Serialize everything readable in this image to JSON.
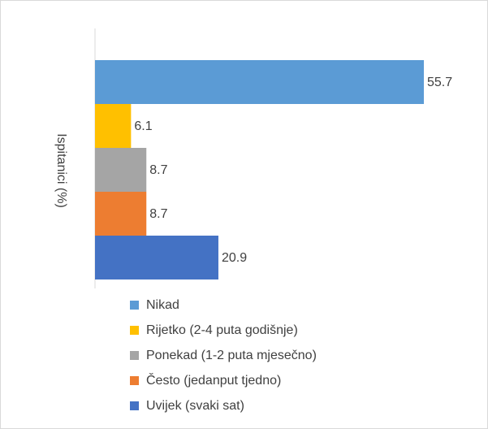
{
  "chart_data": {
    "type": "bar",
    "orientation": "horizontal",
    "y_label": "Ispitanici (%)",
    "categories": [
      "Nikad",
      "Rijetko (2-4 puta godišnje)",
      "Ponekad (1-2 puta mjesečno)",
      "Često (jedanput tjedno)",
      "Uvijek (svaki sat)"
    ],
    "values": [
      55.7,
      6.1,
      8.7,
      8.7,
      20.9
    ],
    "colors": [
      "#5b9bd5",
      "#ffc000",
      "#a5a5a5",
      "#ed7d31",
      "#4472c4"
    ],
    "legend": "bottom"
  }
}
